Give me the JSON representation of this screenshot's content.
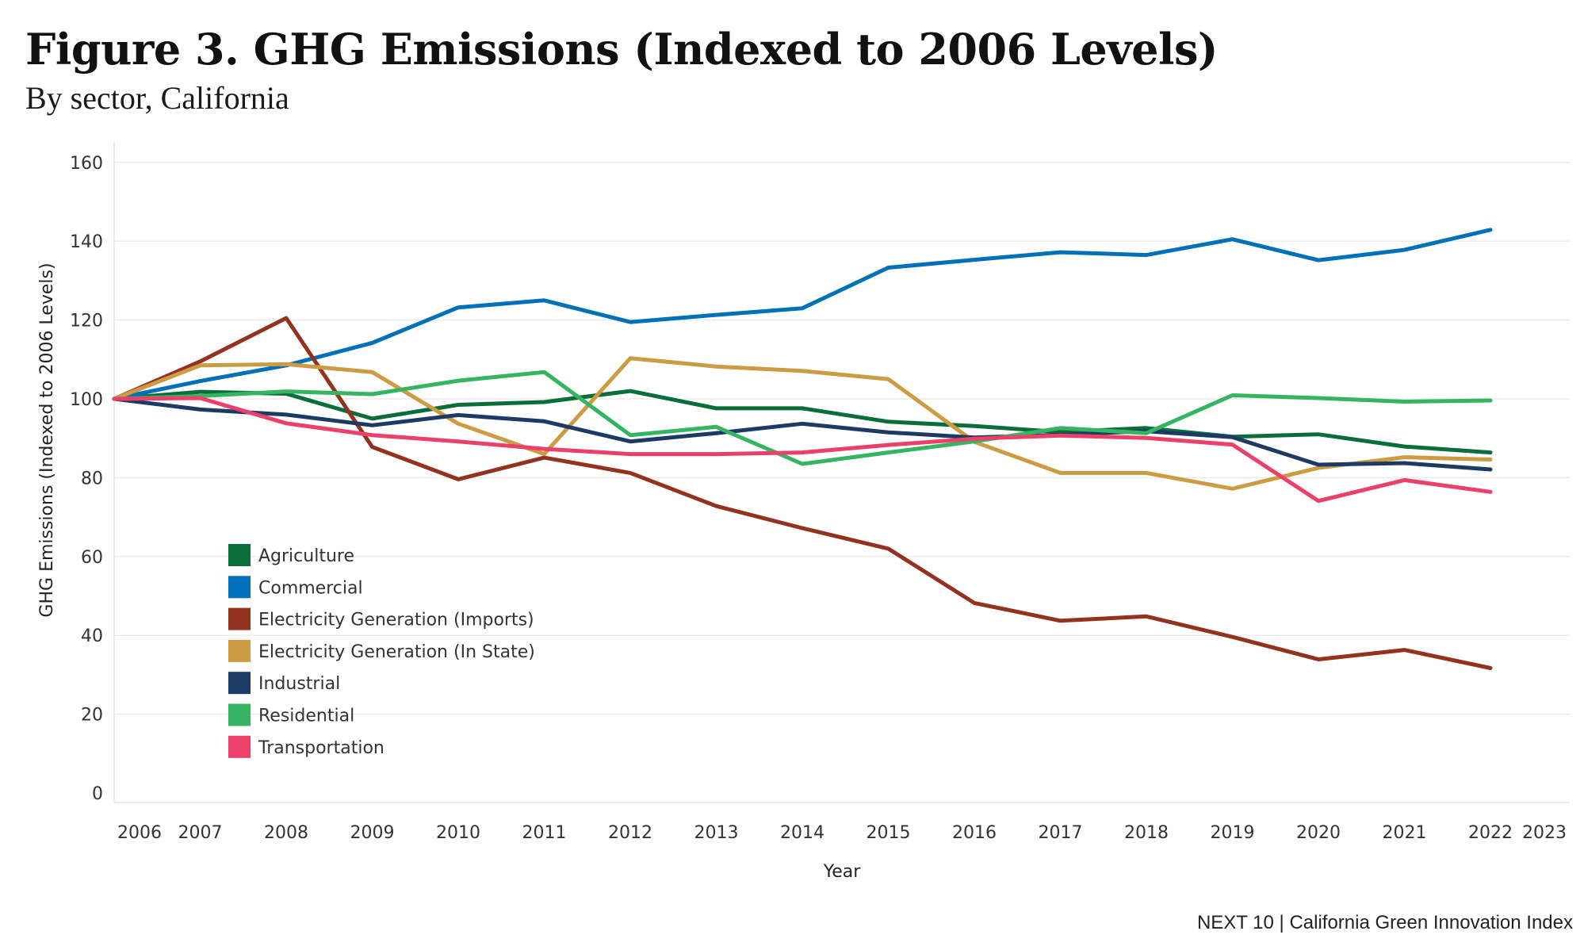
{
  "header": {
    "title": "Figure 3. GHG Emissions (Indexed to 2006 Levels)",
    "subtitle": "By sector, California"
  },
  "footer": {
    "credit": "NEXT 10 | California Green Innovation Index"
  },
  "chart_data": {
    "type": "line",
    "title": "Figure 3. GHG Emissions (Indexed to 2006 Levels)",
    "subtitle": "By sector, California",
    "xlabel": "Year",
    "ylabel": "GHG Emissions (Indexed to 2006 Levels)",
    "x": [
      2006,
      2007,
      2008,
      2009,
      2010,
      2011,
      2012,
      2013,
      2014,
      2015,
      2016,
      2017,
      2018,
      2019,
      2020,
      2021,
      2022
    ],
    "x_ticks": [
      2006,
      2007,
      2008,
      2009,
      2010,
      2011,
      2012,
      2013,
      2014,
      2015,
      2016,
      2017,
      2018,
      2019,
      2020,
      2021,
      2022,
      2023
    ],
    "xlim": [
      2006,
      2023
    ],
    "ylim": [
      0,
      170
    ],
    "y_ticks": [
      0,
      20,
      40,
      60,
      80,
      100,
      120,
      140,
      160
    ],
    "grid": true,
    "legend_position": "bottom-left",
    "series": [
      {
        "name": "Agriculture",
        "color": "#0a6e3a",
        "values": [
          100,
          101.8,
          101.3,
          95,
          98.5,
          99.2,
          102,
          97.6,
          97.6,
          94.2,
          93.1,
          91.6,
          92.6,
          90.4,
          91,
          87.9,
          86.4
        ]
      },
      {
        "name": "Commercial",
        "color": "#0070b8",
        "values": [
          100,
          104.5,
          108.5,
          114.2,
          123.2,
          125,
          119.5,
          121.3,
          123,
          133.3,
          135.3,
          137.2,
          136.5,
          140.5,
          135.2,
          137.8,
          142.9
        ]
      },
      {
        "name": "Electricity Generation (Imports)",
        "color": "#93321f",
        "values": [
          100,
          109.5,
          120.5,
          87.8,
          79.6,
          85.1,
          81.2,
          72.8,
          67.2,
          62,
          48.2,
          43.7,
          44.8,
          39.6,
          33.9,
          36.3,
          31.7
        ]
      },
      {
        "name": "Electricity Generation (In State)",
        "color": "#cd9b41",
        "values": [
          100,
          108.5,
          108.8,
          106.8,
          93.7,
          86,
          110.3,
          108.2,
          107.1,
          105,
          89.1,
          81.2,
          81.2,
          77.2,
          82.5,
          85.2,
          84.6
        ]
      },
      {
        "name": "Industrial",
        "color": "#1c3a64",
        "values": [
          100,
          97.3,
          96,
          93.3,
          95.9,
          94.3,
          89.2,
          91.3,
          93.7,
          91.5,
          90.2,
          90.9,
          91.8,
          90.3,
          83.3,
          83.7,
          82.1
        ]
      },
      {
        "name": "Residential",
        "color": "#35b461",
        "values": [
          100,
          100.7,
          101.9,
          101.2,
          104.6,
          106.8,
          90.8,
          92.9,
          83.5,
          86.4,
          89.2,
          92.6,
          91.3,
          100.9,
          100.2,
          99.3,
          99.6
        ]
      },
      {
        "name": "Transportation",
        "color": "#ea4069",
        "values": [
          100,
          100.2,
          93.8,
          90.8,
          89.2,
          87.3,
          86,
          86,
          86.4,
          88.3,
          89.9,
          90.7,
          90.1,
          88.4,
          74.1,
          79.4,
          76.4
        ]
      }
    ]
  }
}
